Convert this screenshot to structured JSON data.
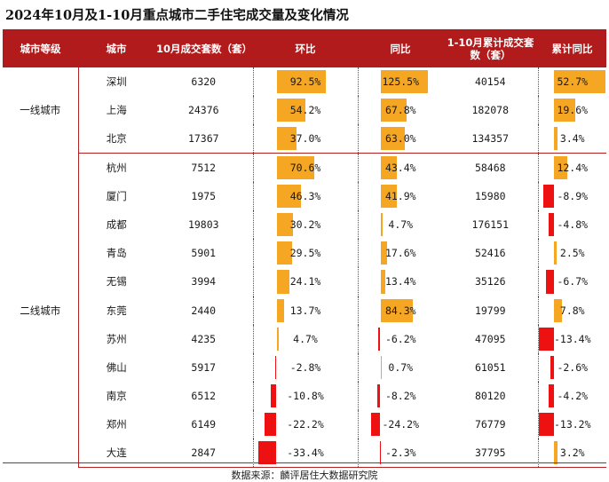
{
  "title": "2024年10月及1-10月重点城市二手住宅成交量及变化情况",
  "headers": [
    "城市等级",
    "城市",
    "10月成交套数（套）",
    "环比",
    "同比",
    "1-10月累计成交套数（套）",
    "累计同比"
  ],
  "colors": {
    "header_bg": "#b11b1c",
    "positive": "#f5a623",
    "negative": "#ee1111"
  },
  "groups": [
    {
      "tier": "一线城市",
      "rows": [
        {
          "city": "深圳",
          "oct": "6320",
          "mom": "92.5%",
          "mom_v": 92.5,
          "yoy": "125.5%",
          "yoy_v": 125.5,
          "cum": "40154",
          "cum_yoy": "52.7%",
          "cum_v": 52.7
        },
        {
          "city": "上海",
          "oct": "24376",
          "mom": "54.2%",
          "mom_v": 54.2,
          "yoy": "67.8%",
          "yoy_v": 67.8,
          "cum": "182078",
          "cum_yoy": "19.6%",
          "cum_v": 19.6
        },
        {
          "city": "北京",
          "oct": "17367",
          "mom": "37.0%",
          "mom_v": 37.0,
          "yoy": "63.0%",
          "yoy_v": 63.0,
          "cum": "134357",
          "cum_yoy": "3.4%",
          "cum_v": 3.4
        }
      ]
    },
    {
      "tier": "二线城市",
      "rows": [
        {
          "city": "杭州",
          "oct": "7512",
          "mom": "70.6%",
          "mom_v": 70.6,
          "yoy": "43.4%",
          "yoy_v": 43.4,
          "cum": "58468",
          "cum_yoy": "12.4%",
          "cum_v": 12.4
        },
        {
          "city": "厦门",
          "oct": "1975",
          "mom": "46.3%",
          "mom_v": 46.3,
          "yoy": "41.9%",
          "yoy_v": 41.9,
          "cum": "15980",
          "cum_yoy": "-8.9%",
          "cum_v": -8.9
        },
        {
          "city": "成都",
          "oct": "19803",
          "mom": "30.2%",
          "mom_v": 30.2,
          "yoy": "4.7%",
          "yoy_v": 4.7,
          "cum": "176151",
          "cum_yoy": "-4.8%",
          "cum_v": -4.8
        },
        {
          "city": "青岛",
          "oct": "5901",
          "mom": "29.5%",
          "mom_v": 29.5,
          "yoy": "17.6%",
          "yoy_v": 17.6,
          "cum": "52416",
          "cum_yoy": "2.5%",
          "cum_v": 2.5
        },
        {
          "city": "无锡",
          "oct": "3994",
          "mom": "24.1%",
          "mom_v": 24.1,
          "yoy": "13.4%",
          "yoy_v": 13.4,
          "cum": "35126",
          "cum_yoy": "-6.7%",
          "cum_v": -6.7
        },
        {
          "city": "东莞",
          "oct": "2440",
          "mom": "13.7%",
          "mom_v": 13.7,
          "yoy": "84.3%",
          "yoy_v": 84.3,
          "cum": "19799",
          "cum_yoy": "7.8%",
          "cum_v": 7.8
        },
        {
          "city": "苏州",
          "oct": "4235",
          "mom": "4.7%",
          "mom_v": 4.7,
          "yoy": "-6.2%",
          "yoy_v": -6.2,
          "cum": "47095",
          "cum_yoy": "-13.4%",
          "cum_v": -13.4
        },
        {
          "city": "佛山",
          "oct": "5917",
          "mom": "-2.8%",
          "mom_v": -2.8,
          "yoy": "0.7%",
          "yoy_v": 0.7,
          "cum": "61051",
          "cum_yoy": "-2.6%",
          "cum_v": -2.6
        },
        {
          "city": "南京",
          "oct": "6512",
          "mom": "-10.8%",
          "mom_v": -10.8,
          "yoy": "-8.2%",
          "yoy_v": -8.2,
          "cum": "80120",
          "cum_yoy": "-4.2%",
          "cum_v": -4.2
        },
        {
          "city": "郑州",
          "oct": "6149",
          "mom": "-22.2%",
          "mom_v": -22.2,
          "yoy": "-24.2%",
          "yoy_v": -24.2,
          "cum": "76779",
          "cum_yoy": "-13.2%",
          "cum_v": -13.2
        },
        {
          "city": "大连",
          "oct": "2847",
          "mom": "-33.4%",
          "mom_v": -33.4,
          "yoy": "-2.3%",
          "yoy_v": -2.3,
          "cum": "37795",
          "cum_yoy": "3.2%",
          "cum_v": 3.2
        }
      ]
    }
  ],
  "source": "数据来源：麟评居住大数据研究院"
}
